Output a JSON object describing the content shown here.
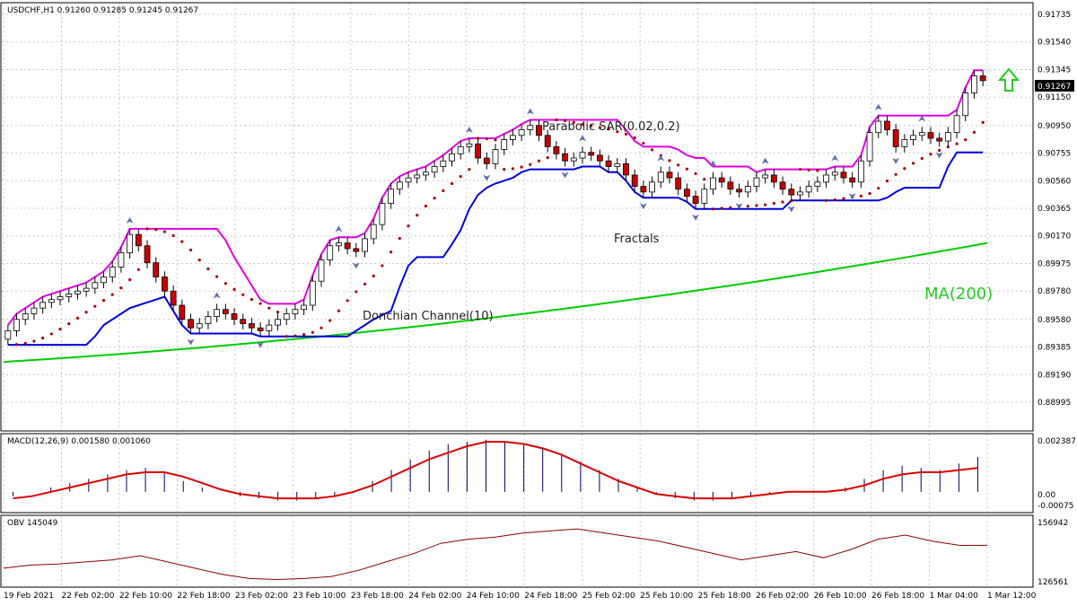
{
  "header": {
    "title": "USDCHF,H1  0.91260 0.91285 0.91245 0.91267"
  },
  "colors": {
    "bull_candle": "#ffffff",
    "bear_candle": "#cc0000",
    "channel_upper": "#e000e0",
    "channel_lower": "#0000e0",
    "sar": "#aa0000",
    "ma": "#00cc00",
    "macd_signal": "#dd0000",
    "macd_hist": "#000066",
    "obv": "#8b0000",
    "arrow": "#22cc22"
  },
  "annotations": {
    "sar_label": "Parabolic SAR(0.02,0.2)",
    "fractals_label": "Fractals",
    "donchian_label": "Donchian Channel(10)",
    "ma_label": "MA(200)"
  },
  "current_price": "0.91267",
  "signal": "up-arrow-icon",
  "chart_data": [
    {
      "type": "candlestick",
      "title": "USDCHF,H1  0.91260 0.91285 0.91245 0.91267",
      "y_ticks": [
        "0.91735",
        "0.91540",
        "0.91345",
        "0.91150",
        "0.90950",
        "0.90755",
        "0.90560",
        "0.90365",
        "0.90170",
        "0.89975",
        "0.89780",
        "0.89580",
        "0.89385",
        "0.89190",
        "0.88995"
      ],
      "ylim": [
        0.88995,
        0.91735
      ],
      "x_ticks": [
        "19 Feb 2021",
        "22 Feb 02:00",
        "22 Feb 10:00",
        "22 Feb 18:00",
        "23 Feb 02:00",
        "23 Feb 10:00",
        "23 Feb 18:00",
        "24 Feb 02:00",
        "24 Feb 10:00",
        "24 Feb 18:00",
        "25 Feb 02:00",
        "25 Feb 10:00",
        "25 Feb 18:00",
        "26 Feb 02:00",
        "26 Feb 10:00",
        "26 Feb 18:00",
        "1 Mar 04:00",
        "1 Mar 12:00"
      ],
      "close_series": [
        0.895,
        0.8958,
        0.8962,
        0.8966,
        0.897,
        0.8972,
        0.8974,
        0.8976,
        0.8978,
        0.898,
        0.8984,
        0.8988,
        0.8995,
        0.9005,
        0.9018,
        0.901,
        0.8998,
        0.8988,
        0.8978,
        0.8968,
        0.8958,
        0.8952,
        0.8955,
        0.896,
        0.8965,
        0.8962,
        0.8958,
        0.8955,
        0.8952,
        0.895,
        0.8954,
        0.8958,
        0.8962,
        0.8965,
        0.8968,
        0.8985,
        0.9,
        0.901,
        0.9012,
        0.9008,
        0.9006,
        0.9015,
        0.9025,
        0.904,
        0.905,
        0.9055,
        0.9058,
        0.906,
        0.9062,
        0.9066,
        0.907,
        0.9075,
        0.908,
        0.9082,
        0.9072,
        0.9068,
        0.9078,
        0.9085,
        0.9088,
        0.9092,
        0.9095,
        0.9088,
        0.908,
        0.9075,
        0.907,
        0.9072,
        0.9076,
        0.9074,
        0.907,
        0.9066,
        0.9068,
        0.906,
        0.9052,
        0.9048,
        0.9055,
        0.9062,
        0.9058,
        0.905,
        0.9045,
        0.904,
        0.905,
        0.9058,
        0.9055,
        0.905,
        0.9048,
        0.9052,
        0.9058,
        0.906,
        0.9055,
        0.905,
        0.9046,
        0.9048,
        0.9052,
        0.9055,
        0.906,
        0.9062,
        0.9058,
        0.9055,
        0.907,
        0.909,
        0.9098,
        0.9092,
        0.908,
        0.9085,
        0.9088,
        0.909,
        0.9086,
        0.9084,
        0.909,
        0.9102,
        0.9118,
        0.913,
        0.91267
      ],
      "sma200_endpoints": [
        0.8928,
        0.9012
      ],
      "series": [
        {
          "name": "MA(200)"
        },
        {
          "name": "Parabolic SAR(0.02,0.2)"
        },
        {
          "name": "Donchian Channel(10)"
        },
        {
          "name": "Fractals"
        }
      ]
    },
    {
      "type": "bar",
      "title": "MACD(12,26,9) 0.001580 0.001060",
      "y_ticks": [
        "0.002387",
        "0.00",
        "-0.00075"
      ],
      "ylim": [
        -0.00075,
        0.002387
      ],
      "hist_series": [
        -0.0002,
        0.0,
        0.0002,
        0.0004,
        0.0006,
        0.0008,
        0.001,
        0.0011,
        0.0009,
        0.0005,
        0.0002,
        0.0,
        -0.0002,
        -0.0003,
        -0.0004,
        -0.0004,
        -0.0003,
        -0.0002,
        0.0,
        0.0005,
        0.001,
        0.0015,
        0.0019,
        0.0022,
        0.0023,
        0.0024,
        0.0023,
        0.0022,
        0.002,
        0.0017,
        0.0014,
        0.001,
        0.0006,
        0.0002,
        -0.0001,
        -0.0003,
        -0.0004,
        -0.0004,
        -0.0003,
        -0.0002,
        -0.0001,
        0.0,
        0.0,
        0.0,
        0.0002,
        0.0006,
        0.001,
        0.0012,
        0.0011,
        0.001,
        0.0013,
        0.0016
      ],
      "signal_series": [
        -0.0003,
        -0.0002,
        0.0,
        0.0002,
        0.0004,
        0.0006,
        0.0008,
        0.0009,
        0.0009,
        0.0007,
        0.0004,
        0.0001,
        -0.0001,
        -0.0002,
        -0.0003,
        -0.0003,
        -0.0003,
        -0.0002,
        0.0,
        0.0003,
        0.0007,
        0.0011,
        0.0015,
        0.0018,
        0.0021,
        0.0023,
        0.0023,
        0.0022,
        0.002,
        0.0017,
        0.0013,
        0.0009,
        0.0005,
        0.0002,
        -0.0001,
        -0.0002,
        -0.0003,
        -0.0003,
        -0.0003,
        -0.0002,
        -0.0001,
        0.0,
        0.0,
        0.0,
        0.0001,
        0.0003,
        0.0006,
        0.0008,
        0.0009,
        0.0009,
        0.001,
        0.0011
      ]
    },
    {
      "type": "line",
      "title": "OBV 145049",
      "y_ticks": [
        "156942",
        "126561"
      ],
      "ylim": [
        126561,
        156942
      ],
      "values": [
        134000,
        135500,
        136000,
        137000,
        138000,
        140000,
        137000,
        134000,
        131000,
        129000,
        128500,
        129000,
        130000,
        133000,
        137000,
        141000,
        146000,
        148000,
        149000,
        151000,
        152000,
        153000,
        151000,
        149000,
        147000,
        144000,
        141000,
        138000,
        140000,
        142000,
        139000,
        143000,
        148000,
        150000,
        147000,
        145000,
        145049
      ]
    }
  ]
}
